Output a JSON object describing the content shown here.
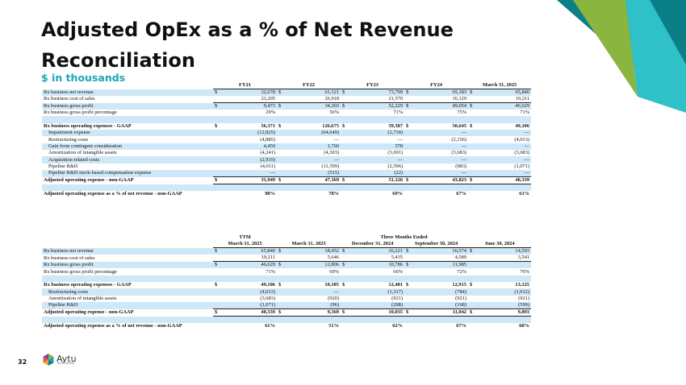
{
  "slide": {
    "title": "Adjusted OpEx as a % of Net Revenue Reconciliation",
    "subtitle": "$ in thousands",
    "page_number": "32",
    "logo": {
      "name": "Aytu",
      "tagline": "BIOPHARMA"
    }
  },
  "colors": {
    "accent_teal": "#1aa6b7",
    "accent_green": "#8ab63f",
    "accent_dark": "#0a7f86",
    "stripe": "#cfe7f7"
  },
  "table1": {
    "headers": [
      "FY21",
      "FY22",
      "FY23",
      "FY24",
      "March 31, 2025"
    ],
    "rows": [
      {
        "label": "Rx business net revenue",
        "dollar": true,
        "values": [
          "32,678",
          "61,121",
          "73,799",
          "65,183",
          "65,840"
        ]
      },
      {
        "label": "Rx business cost of sales",
        "values": [
          "23,205",
          "26,918",
          "21,570",
          "16,129",
          "19,211"
        ]
      },
      {
        "label": "Rx business gross profit",
        "dollar": true,
        "values": [
          "9,473",
          "34,203",
          "52,229",
          "49,054",
          "46,629"
        ]
      },
      {
        "label": "Rx business gross profit percentage",
        "values": [
          "29%",
          "56%",
          "71%",
          "75%",
          "71%"
        ]
      },
      {
        "label": "",
        "values": [
          "",
          "",
          "",
          "",
          ""
        ]
      },
      {
        "label": "Rx business operating expenses - GAAP",
        "dollar": true,
        "values": [
          "56,371",
          "126,675",
          "59,587",
          "50,645",
          "49,106"
        ]
      },
      {
        "label": "Impairment expense",
        "values": [
          "(12,825)",
          "(64,649)",
          "(2,730)",
          "—",
          "—"
        ]
      },
      {
        "label": "Restructuring costs",
        "values": [
          "(4,885)",
          "—",
          "—",
          "(2,156)",
          "(4,013)"
        ]
      },
      {
        "label": "Gain from contingent consideration",
        "values": [
          "4,459",
          "1,760",
          "578",
          "—",
          "—"
        ]
      },
      {
        "label": "Amortization of intangible assets",
        "values": [
          "(4,241)",
          "(4,303)",
          "(3,691)",
          "(3,683)",
          "(3,683)"
        ]
      },
      {
        "label": "Acquisition related costs",
        "values": [
          "(2,919)",
          "—",
          "—",
          "—",
          "—"
        ]
      },
      {
        "label": "Pipeline R&D",
        "values": [
          "(4,011)",
          "(11,599)",
          "(2,596)",
          "(983)",
          "(1,071)"
        ]
      },
      {
        "label": "Pipeline R&D stock-based compensation expense",
        "values": [
          "—",
          "(515)",
          "(22)",
          "—",
          "—"
        ]
      },
      {
        "label": "Adjusted operating expense - non-GAAP",
        "dollar": true,
        "values": [
          "31,949",
          "47,369",
          "51,126",
          "43,823",
          "40,339"
        ]
      },
      {
        "label": "",
        "values": [
          "",
          "",
          "",
          "",
          ""
        ]
      },
      {
        "label": "Adjusted operating expense as a % of net revenue - non-GAAP",
        "values": [
          "98%",
          "78%",
          "69%",
          "67%",
          "61%"
        ]
      }
    ]
  },
  "table2": {
    "group_headers": [
      "TTM",
      "Three Months Ended"
    ],
    "headers": [
      "March 31, 2025",
      "March 31, 2025",
      "December 31, 2024",
      "September 30, 2024",
      "June 30, 2024"
    ],
    "rows": [
      {
        "label": "Rx business net revenue",
        "dollar": true,
        "values": [
          "65,840",
          "18,452",
          "16,221",
          "16,574",
          "14,593"
        ]
      },
      {
        "label": "Rx business cost of sales",
        "values": [
          "19,211",
          "5,646",
          "5,435",
          "4,589",
          "3,541"
        ]
      },
      {
        "label": "Rx business gross profit",
        "dollar": true,
        "values": [
          "46,629",
          "12,806",
          "10,786",
          "11,985",
          ""
        ]
      },
      {
        "label": "Rx business gross profit percentage",
        "values": [
          "71%",
          "69%",
          "66%",
          "72%",
          "76%"
        ]
      },
      {
        "label": "",
        "values": [
          "",
          "",
          "",
          "",
          ""
        ]
      },
      {
        "label": "Rx business operating expenses - GAAP",
        "dollar": true,
        "values": [
          "49,106",
          "10,385",
          "12,481",
          "12,915",
          "13,325"
        ]
      },
      {
        "label": "Restructuring costs",
        "values": [
          "(4,013)",
          "—",
          "(1,317)",
          "(784)",
          "(1,912)"
        ]
      },
      {
        "label": "Amortization of intangible assets",
        "values": [
          "(3,683)",
          "(920)",
          "(921)",
          "(921)",
          "(921)"
        ]
      },
      {
        "label": "Pipeline R&D",
        "values": [
          "(1,071)",
          "(96)",
          "(208)",
          "(168)",
          "(599)"
        ]
      },
      {
        "label": "Adjusted operating expense - non-GAAP",
        "dollar": true,
        "values": [
          "40,339",
          "9,369",
          "10,035",
          "11,042",
          "9,893"
        ]
      },
      {
        "label": "",
        "values": [
          "",
          "",
          "",
          "",
          ""
        ]
      },
      {
        "label": "Adjusted operating expense as a % of net revenue - non-GAAP",
        "values": [
          "61%",
          "51%",
          "62%",
          "67%",
          "68%"
        ]
      }
    ]
  }
}
